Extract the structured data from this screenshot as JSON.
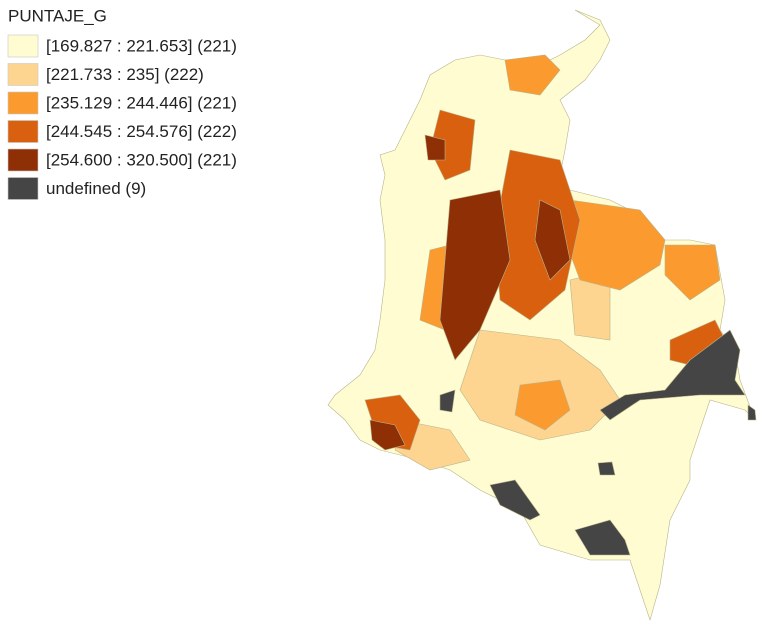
{
  "legend": {
    "title": "PUNTAJE_G",
    "items": [
      {
        "label": "[169.827 : 221.653] (221)",
        "color": "#fefcd0"
      },
      {
        "label": "[221.733 : 235] (222)",
        "color": "#fdd591"
      },
      {
        "label": "[235.129 : 244.446] (221)",
        "color": "#fb9a2f"
      },
      {
        "label": "[244.545 : 254.576] (222)",
        "color": "#d9600f"
      },
      {
        "label": "[254.600 : 320.500] (221)",
        "color": "#8f2f06"
      },
      {
        "label": "undefined (9)",
        "color": "#454545"
      }
    ]
  }
}
